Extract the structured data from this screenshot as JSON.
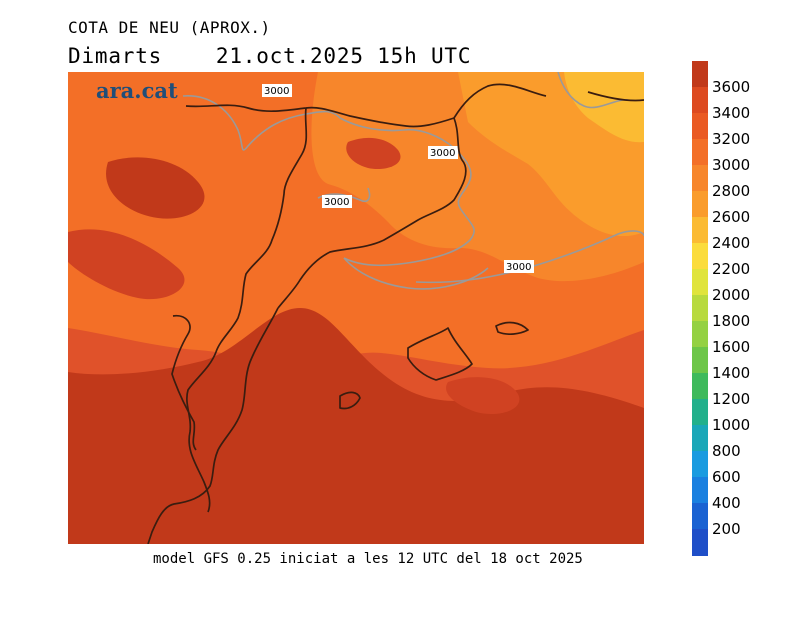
{
  "title": "COTA DE NEU (APROX.)",
  "subtitle_day": "Dimarts",
  "subtitle_datetime": "21.oct.2025 15h UTC",
  "brand": "ara.cat",
  "footer": "model GFS 0.25 iniciat a les 12 UTC del 18 oct 2025",
  "contour_labels": [
    "3000",
    "3000",
    "3000",
    "3000"
  ],
  "colorbar": {
    "segments": [
      {
        "value": "3600",
        "color": "#c1391a"
      },
      {
        "value": "3400",
        "color": "#dd4a20"
      },
      {
        "value": "3200",
        "color": "#ea5a23"
      },
      {
        "value": "3000",
        "color": "#f36f27"
      },
      {
        "value": "2800",
        "color": "#f7862b"
      },
      {
        "value": "2600",
        "color": "#fa9c2c"
      },
      {
        "value": "2400",
        "color": "#fbbb33"
      },
      {
        "value": "2200",
        "color": "#fbdc3c"
      },
      {
        "value": "2000",
        "color": "#e0e43c"
      },
      {
        "value": "1800",
        "color": "#b8da3e"
      },
      {
        "value": "1600",
        "color": "#94d142"
      },
      {
        "value": "1400",
        "color": "#6dc648"
      },
      {
        "value": "1200",
        "color": "#3eba5c"
      },
      {
        "value": "1000",
        "color": "#22b08b"
      },
      {
        "value": "800",
        "color": "#1aa7b8"
      },
      {
        "value": "600",
        "color": "#1a9be0"
      },
      {
        "value": "400",
        "color": "#1a80e0"
      },
      {
        "value": "200",
        "color": "#1a62d2"
      },
      {
        "value": "",
        "color": "#1f4fc8"
      }
    ]
  }
}
